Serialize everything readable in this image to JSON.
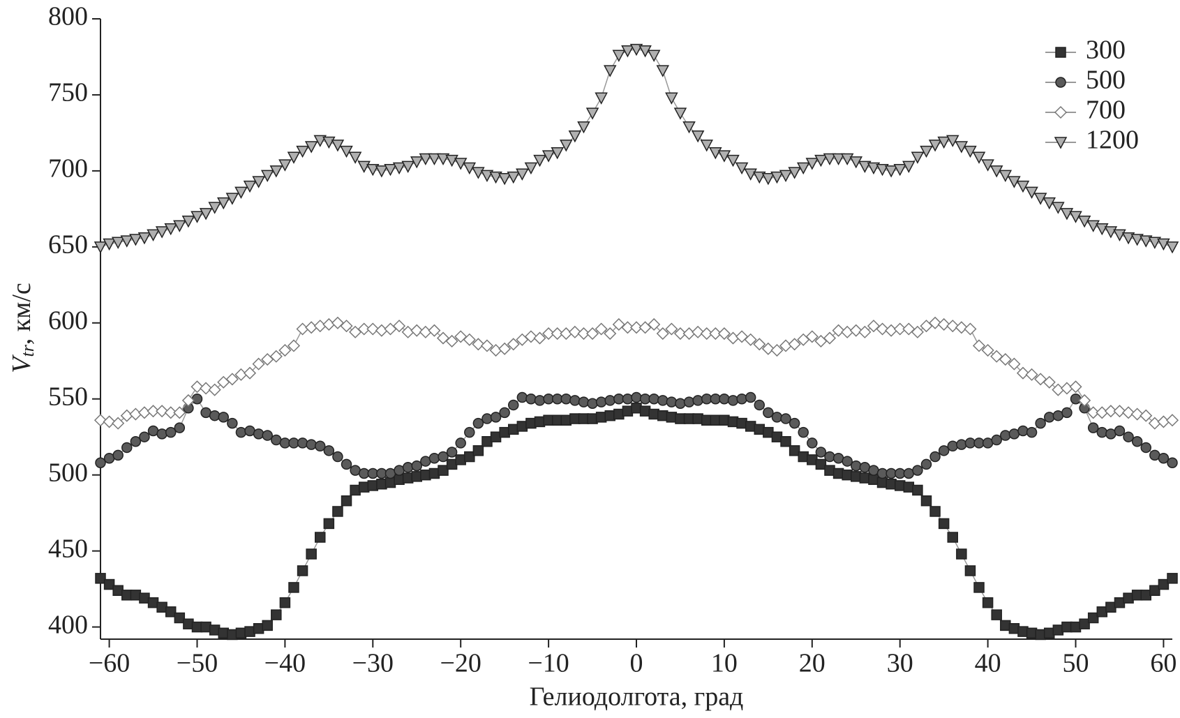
{
  "chart_data": {
    "type": "line",
    "xlabel": "Гелиодолгота, град",
    "ylabel": {
      "main": "V",
      "sub": "tr",
      "rest": ", км/с"
    },
    "xlim": [
      -61,
      61
    ],
    "xticks": [
      -60,
      -50,
      -40,
      -30,
      -20,
      -10,
      0,
      10,
      20,
      30,
      40,
      50,
      60
    ],
    "ylim": [
      392,
      800
    ],
    "yticks": [
      400,
      450,
      500,
      550,
      600,
      650,
      700,
      750,
      800
    ],
    "legend": "upper right",
    "x": [
      -61,
      -60,
      -59,
      -58,
      -57,
      -56,
      -55,
      -54,
      -53,
      -52,
      -51,
      -50,
      -49,
      -48,
      -47,
      -46,
      -45,
      -44,
      -43,
      -42,
      -41,
      -40,
      -39,
      -38,
      -37,
      -36,
      -35,
      -34,
      -33,
      -32,
      -31,
      -30,
      -29,
      -28,
      -27,
      -26,
      -25,
      -24,
      -23,
      -22,
      -21,
      -20,
      -19,
      -18,
      -17,
      -16,
      -15,
      -14,
      -13,
      -12,
      -11,
      -10,
      -9,
      -8,
      -7,
      -6,
      -5,
      -4,
      -3,
      -2,
      -1,
      0,
      1,
      2,
      3,
      4,
      5,
      6,
      7,
      8,
      9,
      10,
      11,
      12,
      13,
      14,
      15,
      16,
      17,
      18,
      19,
      20,
      21,
      22,
      23,
      24,
      25,
      26,
      27,
      28,
      29,
      30,
      31,
      32,
      33,
      34,
      35,
      36,
      37,
      38,
      39,
      40,
      41,
      42,
      43,
      44,
      45,
      46,
      47,
      48,
      49,
      50,
      51,
      52,
      53,
      54,
      55,
      56,
      57,
      58,
      59,
      60,
      61
    ],
    "series": [
      {
        "name": "300",
        "color": "#333333",
        "marker": "square",
        "values": [
          432,
          428,
          424,
          421,
          421,
          419,
          416,
          413,
          410,
          406,
          402,
          400,
          400,
          398,
          396,
          395,
          396,
          397,
          399,
          401,
          408,
          416,
          426,
          437,
          448,
          459,
          468,
          476,
          483,
          490,
          492,
          493,
          494,
          495,
          497,
          498,
          499,
          500,
          501,
          503,
          507,
          510,
          512,
          516,
          522,
          525,
          528,
          530,
          532,
          534,
          535,
          536,
          536,
          536,
          537,
          537,
          537,
          538,
          539,
          540,
          542,
          544,
          542,
          540,
          539,
          538,
          537,
          537,
          537,
          536,
          536,
          536,
          535,
          534,
          532,
          530,
          528,
          525,
          522,
          516,
          512,
          510,
          507,
          503,
          501,
          500,
          499,
          498,
          497,
          495,
          494,
          493,
          492,
          490,
          483,
          476,
          468,
          459,
          448,
          437,
          426,
          416,
          408,
          401,
          399,
          397,
          396,
          395,
          396,
          398,
          400,
          400,
          402,
          406,
          410,
          413,
          416,
          419,
          421,
          421,
          424,
          428,
          432
        ]
      },
      {
        "name": "500",
        "color": "#5a5a5a",
        "marker": "circle",
        "values": [
          508,
          511,
          513,
          518,
          522,
          525,
          529,
          527,
          528,
          531,
          544,
          550,
          541,
          539,
          538,
          534,
          528,
          529,
          527,
          526,
          523,
          521,
          521,
          521,
          520,
          519,
          516,
          512,
          507,
          503,
          501,
          501,
          501,
          501,
          503,
          505,
          506,
          509,
          511,
          512,
          515,
          521,
          528,
          534,
          537,
          538,
          541,
          546,
          551,
          550,
          549,
          550,
          550,
          550,
          549,
          548,
          547,
          548,
          549,
          550,
          550,
          551,
          550,
          550,
          549,
          548,
          547,
          548,
          549,
          550,
          550,
          550,
          549,
          550,
          551,
          546,
          541,
          538,
          537,
          534,
          528,
          521,
          515,
          512,
          511,
          509,
          506,
          505,
          503,
          501,
          501,
          501,
          501,
          503,
          507,
          512,
          516,
          519,
          520,
          521,
          521,
          521,
          523,
          526,
          527,
          529,
          528,
          534,
          538,
          539,
          541,
          550,
          544,
          531,
          528,
          527,
          529,
          525,
          522,
          518,
          513,
          511,
          508
        ]
      },
      {
        "name": "700",
        "color": "#ffffff",
        "marker": "diamond",
        "values": [
          536,
          535,
          534,
          539,
          540,
          541,
          542,
          542,
          541,
          541,
          549,
          558,
          557,
          556,
          561,
          563,
          566,
          567,
          573,
          576,
          578,
          582,
          585,
          596,
          597,
          598,
          599,
          600,
          598,
          594,
          596,
          596,
          595,
          596,
          598,
          594,
          595,
          594,
          595,
          590,
          588,
          591,
          589,
          586,
          585,
          582,
          583,
          586,
          589,
          591,
          590,
          593,
          593,
          593,
          594,
          593,
          593,
          596,
          593,
          599,
          597,
          597,
          597,
          599,
          593,
          596,
          593,
          593,
          594,
          593,
          593,
          593,
          590,
          591,
          589,
          586,
          583,
          582,
          585,
          586,
          589,
          591,
          588,
          590,
          595,
          594,
          595,
          594,
          598,
          596,
          595,
          596,
          596,
          594,
          598,
          600,
          599,
          598,
          597,
          596,
          585,
          582,
          578,
          576,
          573,
          567,
          566,
          563,
          561,
          556,
          557,
          558,
          549,
          541,
          541,
          542,
          542,
          541,
          540,
          539,
          534,
          535,
          536
        ]
      },
      {
        "name": "1200",
        "color": "#b0b0b0",
        "marker": "triangle-down",
        "values": [
          650,
          652,
          653,
          654,
          655,
          656,
          658,
          660,
          662,
          664,
          667,
          670,
          672,
          676,
          679,
          682,
          686,
          690,
          693,
          697,
          700,
          704,
          709,
          713,
          716,
          720,
          719,
          717,
          713,
          709,
          703,
          701,
          700,
          701,
          702,
          703,
          706,
          708,
          708,
          708,
          707,
          705,
          702,
          699,
          697,
          696,
          695,
          696,
          698,
          702,
          707,
          710,
          712,
          717,
          723,
          729,
          738,
          748,
          766,
          776,
          779,
          780,
          779,
          776,
          766,
          748,
          738,
          729,
          723,
          717,
          712,
          710,
          707,
          702,
          698,
          696,
          695,
          696,
          697,
          699,
          702,
          705,
          707,
          708,
          708,
          708,
          706,
          703,
          702,
          701,
          700,
          701,
          703,
          709,
          713,
          717,
          719,
          720,
          716,
          713,
          709,
          704,
          700,
          697,
          693,
          690,
          686,
          682,
          679,
          676,
          672,
          670,
          667,
          664,
          662,
          660,
          658,
          656,
          655,
          654,
          653,
          652,
          650
        ]
      }
    ]
  }
}
